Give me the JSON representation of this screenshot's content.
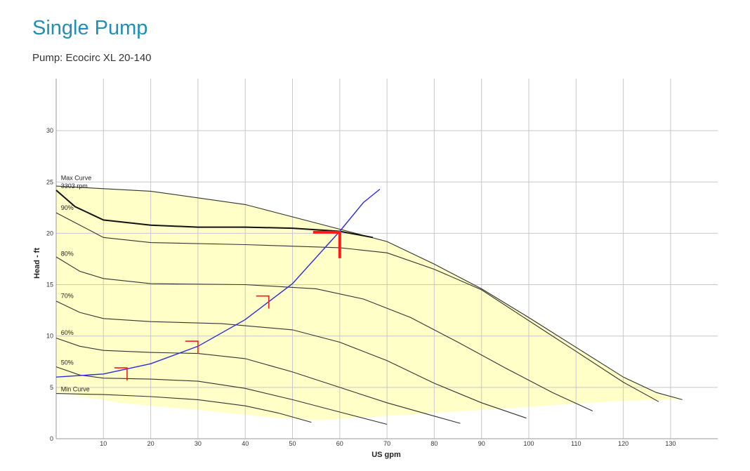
{
  "header": {
    "title": "Single Pump",
    "subtitle": "Pump: Ecocirc XL 20-140"
  },
  "colors": {
    "title": "#1f8fb5",
    "envelope_fill": "#ffffc8",
    "grid": "#c8c8c8",
    "system_curve": "#2a2ae6",
    "marker": "#ff1a1a",
    "curve": "#333333"
  },
  "chart_data": {
    "type": "line",
    "title": "",
    "xlabel": "US gpm",
    "ylabel": "Head - ft",
    "xlim": [
      0,
      140
    ],
    "ylim": [
      0,
      33
    ],
    "x_ticks": [
      10,
      20,
      30,
      40,
      50,
      60,
      70,
      80,
      90,
      100,
      110,
      120,
      130
    ],
    "y_ticks": [
      0,
      5,
      10,
      15,
      20,
      25,
      30
    ],
    "grid": true,
    "envelope": {
      "fill": "#ffffc8",
      "upper": [
        [
          0,
          24.6
        ],
        [
          20,
          24.1
        ],
        [
          40,
          22.8
        ],
        [
          60,
          20.4
        ],
        [
          70,
          19.2
        ],
        [
          80,
          17.0
        ],
        [
          90,
          14.6
        ],
        [
          100,
          11.8
        ],
        [
          110,
          8.9
        ],
        [
          120,
          6.0
        ],
        [
          127,
          4.5
        ],
        [
          132.5,
          3.8
        ]
      ],
      "lower": [
        [
          132.5,
          3.8
        ],
        [
          120,
          3.7
        ],
        [
          100,
          3.1
        ],
        [
          80,
          2.5
        ],
        [
          55,
          1.8
        ],
        [
          45,
          2.1
        ],
        [
          30,
          2.8
        ],
        [
          15,
          3.4
        ],
        [
          0,
          4.5
        ]
      ]
    },
    "series": [
      {
        "name": "Max Curve",
        "style": "envelope-edge",
        "points": [
          [
            0,
            24.6
          ],
          [
            20,
            24.1
          ],
          [
            40,
            22.8
          ],
          [
            60,
            20.4
          ],
          [
            70,
            19.2
          ],
          [
            80,
            17.0
          ],
          [
            90,
            14.6
          ],
          [
            100,
            11.8
          ],
          [
            110,
            8.9
          ],
          [
            120,
            6.0
          ],
          [
            127,
            4.5
          ],
          [
            132.5,
            3.8
          ]
        ]
      },
      {
        "name": "3303 rpm",
        "style": "bold",
        "points": [
          [
            0,
            24.2
          ],
          [
            4,
            22.6
          ],
          [
            10,
            21.3
          ],
          [
            20,
            20.8
          ],
          [
            30,
            20.6
          ],
          [
            40,
            20.6
          ],
          [
            50,
            20.5
          ],
          [
            60,
            20.2
          ],
          [
            67,
            19.6
          ]
        ]
      },
      {
        "name": "90%",
        "points": [
          [
            0,
            22.0
          ],
          [
            5,
            20.8
          ],
          [
            10,
            19.6
          ],
          [
            20,
            19.1
          ],
          [
            40,
            18.9
          ],
          [
            60,
            18.6
          ],
          [
            70,
            18.1
          ],
          [
            80,
            16.5
          ],
          [
            90,
            14.5
          ],
          [
            100,
            11.5
          ],
          [
            110,
            8.5
          ],
          [
            120,
            5.5
          ],
          [
            127.5,
            3.6
          ]
        ]
      },
      {
        "name": "80%",
        "points": [
          [
            0,
            17.7
          ],
          [
            5,
            16.3
          ],
          [
            10,
            15.6
          ],
          [
            20,
            15.1
          ],
          [
            40,
            15.0
          ],
          [
            55,
            14.6
          ],
          [
            65,
            13.6
          ],
          [
            75,
            11.8
          ],
          [
            85,
            9.4
          ],
          [
            95,
            6.9
          ],
          [
            105,
            4.5
          ],
          [
            113.5,
            2.7
          ]
        ]
      },
      {
        "name": "70%",
        "points": [
          [
            0,
            13.4
          ],
          [
            5,
            12.3
          ],
          [
            10,
            11.7
          ],
          [
            20,
            11.4
          ],
          [
            35,
            11.2
          ],
          [
            50,
            10.6
          ],
          [
            60,
            9.4
          ],
          [
            70,
            7.6
          ],
          [
            80,
            5.4
          ],
          [
            90,
            3.5
          ],
          [
            99.5,
            2.0
          ]
        ]
      },
      {
        "name": "60%",
        "points": [
          [
            0,
            9.8
          ],
          [
            5,
            9.0
          ],
          [
            10,
            8.6
          ],
          [
            20,
            8.4
          ],
          [
            30,
            8.3
          ],
          [
            40,
            7.8
          ],
          [
            50,
            6.5
          ],
          [
            60,
            5.0
          ],
          [
            70,
            3.5
          ],
          [
            80,
            2.2
          ],
          [
            85.5,
            1.5
          ]
        ]
      },
      {
        "name": "50%",
        "points": [
          [
            0,
            7.0
          ],
          [
            5,
            6.2
          ],
          [
            10,
            5.9
          ],
          [
            20,
            5.8
          ],
          [
            30,
            5.6
          ],
          [
            40,
            4.9
          ],
          [
            50,
            3.8
          ],
          [
            60,
            2.6
          ],
          [
            70,
            1.4
          ]
        ]
      },
      {
        "name": "Min Curve",
        "points": [
          [
            0,
            4.4
          ],
          [
            10,
            4.3
          ],
          [
            20,
            4.1
          ],
          [
            30,
            3.8
          ],
          [
            40,
            3.2
          ],
          [
            47,
            2.5
          ],
          [
            54,
            1.6
          ]
        ]
      },
      {
        "name": "",
        "style": "system",
        "points": [
          [
            0,
            6.0
          ],
          [
            10,
            6.3
          ],
          [
            20,
            7.3
          ],
          [
            30,
            9.0
          ],
          [
            40,
            11.6
          ],
          [
            50,
            15.1
          ],
          [
            60,
            20.2
          ],
          [
            65,
            23.0
          ],
          [
            68.5,
            24.3
          ]
        ]
      }
    ],
    "curve_labels": [
      {
        "text": "Max Curve",
        "x": 1,
        "y": 25.2
      },
      {
        "text": "3303 rpm",
        "x": 1,
        "y": 24.4
      },
      {
        "text": "90%",
        "x": 1,
        "y": 22.3
      },
      {
        "text": "80%",
        "x": 1,
        "y": 17.8
      },
      {
        "text": "70%",
        "x": 1,
        "y": 13.7
      },
      {
        "text": "60%",
        "x": 1,
        "y": 10.1
      },
      {
        "text": "50%",
        "x": 1,
        "y": 7.2
      },
      {
        "text": "Min Curve",
        "x": 1,
        "y": 4.6
      }
    ],
    "operating_points": [
      {
        "x": 15,
        "y": 6.9,
        "major": false
      },
      {
        "x": 30,
        "y": 9.5,
        "major": false
      },
      {
        "x": 45,
        "y": 13.9,
        "major": false
      },
      {
        "x": 60,
        "y": 20.1,
        "major": true
      }
    ]
  }
}
